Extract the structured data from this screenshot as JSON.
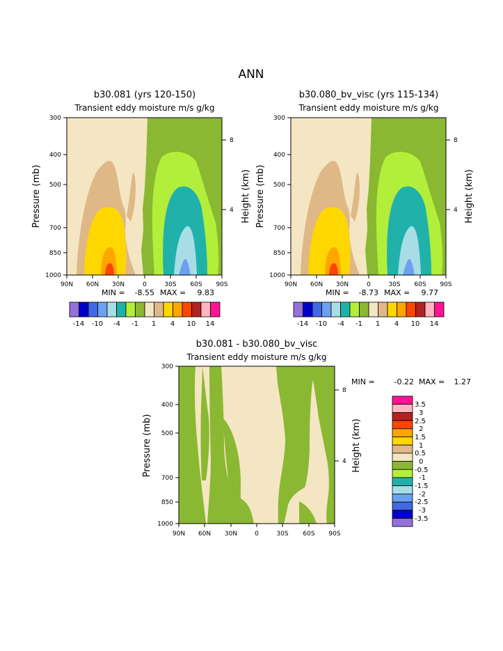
{
  "page_title": "ANN",
  "colors": {
    "palette": [
      "#9370db",
      "#0000cd",
      "#4169e1",
      "#6ca0f0",
      "#a8dde6",
      "#20b2aa",
      "#b3ee3a",
      "#8ab832",
      "#f5e6c3",
      "#deb887",
      "#ffd700",
      "#ffa500",
      "#ff4500",
      "#b22222",
      "#ffb6c1",
      "#ff1493"
    ],
    "land_bg": "#f5e6c3",
    "outline": "#000000"
  },
  "chart_data": [
    {
      "type": "contour",
      "title": "b30.081 (yrs 120-150)",
      "subtitle": "Transient eddy moisture m/s g/kg",
      "ylabel": "Pressure (mb)",
      "ylabel_right": "Height (km)",
      "xlim": [
        90,
        -90
      ],
      "x_ticks": [
        "90N",
        "60N",
        "30N",
        "0",
        "30S",
        "60S",
        "90S"
      ],
      "y_ticks": [
        "300",
        "400",
        "500",
        "700",
        "850",
        "1000"
      ],
      "y_ticks_right": [
        "8",
        "4"
      ],
      "min_label": "MIN =",
      "min_value": "-8.55",
      "max_label": "MAX =",
      "max_value": "9.83",
      "colorbar_labels": [
        "-14",
        "-10",
        "-4",
        "-1",
        "1",
        "4",
        "10",
        "14"
      ]
    },
    {
      "type": "contour",
      "title": "b30.080_bv_visc (yrs 115-134)",
      "subtitle": "Transient eddy moisture m/s g/kg",
      "ylabel": "Pressure (mb)",
      "ylabel_right": "Height (km)",
      "xlim": [
        90,
        -90
      ],
      "x_ticks": [
        "90N",
        "60N",
        "30N",
        "0",
        "30S",
        "60S",
        "90S"
      ],
      "y_ticks": [
        "300",
        "400",
        "500",
        "700",
        "850",
        "1000"
      ],
      "y_ticks_right": [
        "8",
        "4"
      ],
      "min_label": "MIN =",
      "min_value": "-8.73",
      "max_label": "MAX =",
      "max_value": "9.77",
      "colorbar_labels": [
        "-14",
        "-10",
        "-4",
        "-1",
        "1",
        "4",
        "10",
        "14"
      ]
    },
    {
      "type": "contour",
      "title": "b30.081 - b30.080_bv_visc",
      "subtitle": "Transient eddy moisture m/s g/kg",
      "ylabel": "Pressure (mb)",
      "ylabel_right": "Height (km)",
      "xlim": [
        90,
        -90
      ],
      "x_ticks": [
        "90N",
        "60N",
        "30N",
        "0",
        "30S",
        "60S",
        "90S"
      ],
      "y_ticks": [
        "300",
        "400",
        "500",
        "700",
        "850",
        "1000"
      ],
      "y_ticks_right": [
        "8",
        "4"
      ],
      "min_label": "MIN =",
      "min_value": "-0.22",
      "max_label": "MAX =",
      "max_value": "1.27",
      "colorbar_labels": [
        "3.5",
        "3",
        "2.5",
        "2",
        "1.5",
        "1",
        "0.5",
        "0",
        "-0.5",
        "-1",
        "-1.5",
        "-2",
        "-2.5",
        "-3",
        "-3.5"
      ]
    }
  ]
}
